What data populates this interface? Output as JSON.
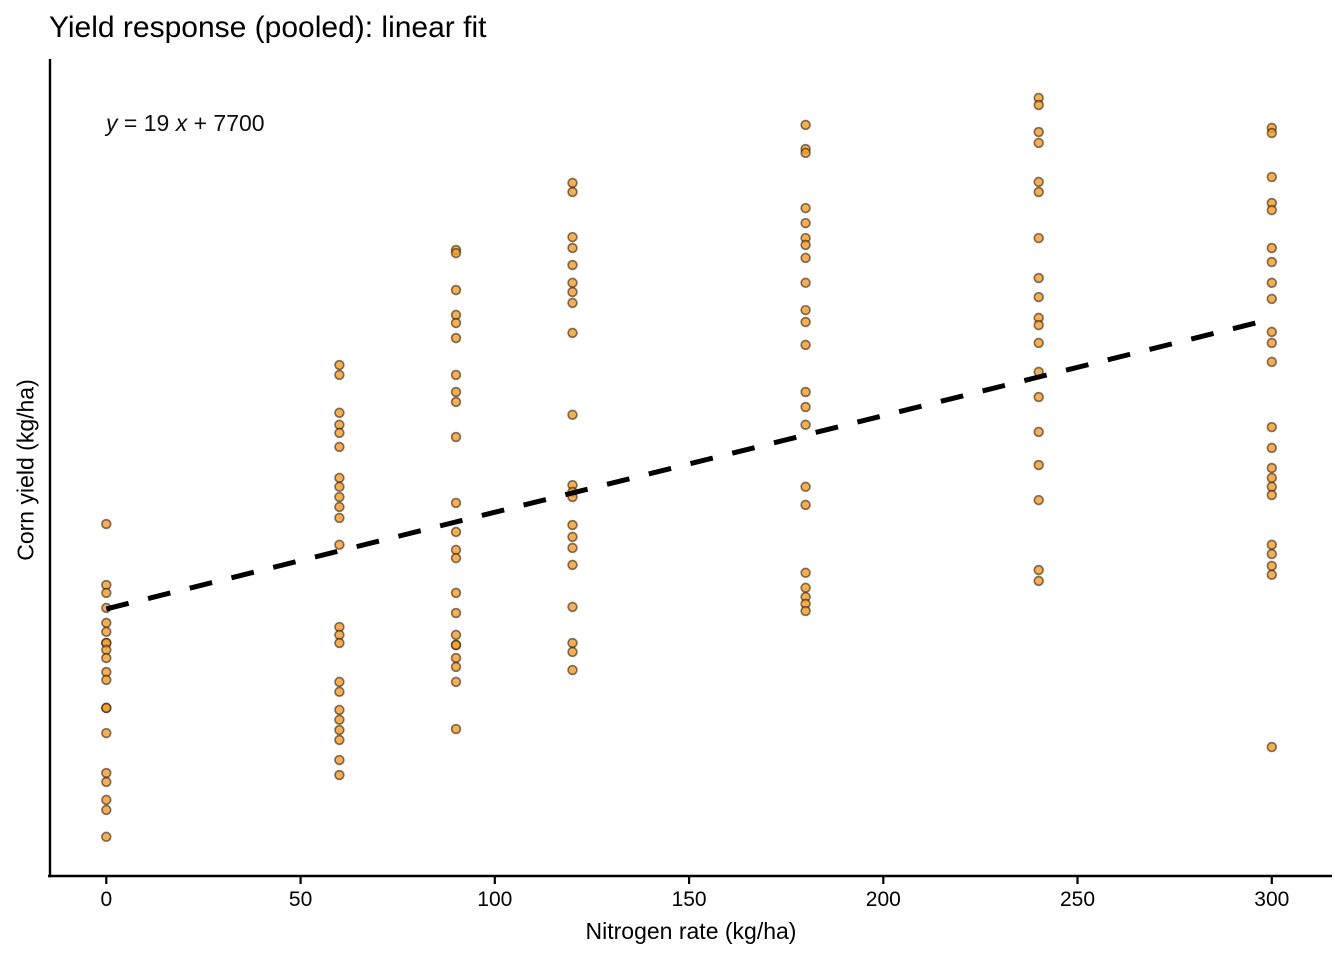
{
  "chart_data": {
    "type": "scatter",
    "title": "Yield response (pooled): linear fit",
    "xlabel": "Nitrogen rate (kg/ha)",
    "ylabel": "Corn yield (kg/ha)",
    "x_ticks": [
      0,
      50,
      100,
      150,
      200,
      250,
      300
    ],
    "y_ticks": [],
    "xlim": [
      -14.5,
      315.5
    ],
    "ylim": [
      2450,
      18510
    ],
    "grid": false,
    "legend": false,
    "annotation": {
      "full": "y = 19 x + 7700",
      "lhs": "y",
      "mid": " = 19 ",
      "x_var": "x",
      "rest": " + 7700"
    },
    "fit_line": {
      "slope": 19,
      "intercept": 7700,
      "x_start": 0,
      "x_end": 300,
      "style": "dashed",
      "color": "#000000"
    },
    "point_style": {
      "fill": "#f89d2a",
      "fill_opacity": 0.82,
      "stroke": "#1c1208",
      "stroke_opacity": 0.55,
      "radius": 4.4,
      "stroke_width": 1.7
    },
    "axis_color": "#000000",
    "series": [
      {
        "x": 0,
        "yields": [
          9370,
          8170,
          8015,
          7720,
          7425,
          7250,
          7030,
          7030,
          6895,
          6735,
          6460,
          6305,
          5755,
          5755,
          5260,
          4475,
          4300,
          3945,
          3750,
          3220
        ]
      },
      {
        "x": 60,
        "yields": [
          12495,
          12300,
          11555,
          11320,
          11160,
          10885,
          10275,
          10100,
          9900,
          9705,
          9490,
          8960,
          7345,
          7190,
          7030,
          6265,
          6070,
          5715,
          5520,
          5320,
          5125,
          4730,
          4435
        ]
      },
      {
        "x": 90,
        "yields": [
          14755,
          14695,
          13970,
          13480,
          13320,
          13025,
          12300,
          11965,
          11770,
          11080,
          9785,
          9215,
          8860,
          8700,
          8015,
          7620,
          7190,
          6990,
          6990,
          6735,
          6560,
          6265,
          5340
        ]
      },
      {
        "x": 120,
        "yields": [
          16075,
          15895,
          15010,
          14795,
          14460,
          14110,
          13930,
          13715,
          13125,
          11515,
          10135,
          10000,
          9900,
          9350,
          9115,
          8900,
          8565,
          7740,
          7030,
          6855,
          6500
        ]
      },
      {
        "x": 180,
        "yields": [
          17215,
          16740,
          16665,
          15580,
          15285,
          14990,
          14855,
          14600,
          14110,
          13575,
          13340,
          12890,
          11965,
          11670,
          11320,
          10100,
          9745,
          8410,
          8115,
          7935,
          7800,
          7660
        ]
      },
      {
        "x": 240,
        "yields": [
          17745,
          17605,
          17075,
          16860,
          16095,
          15895,
          14990,
          14205,
          13830,
          13420,
          13280,
          12930,
          12360,
          11865,
          11180,
          10530,
          9840,
          8465,
          8250
        ]
      },
      {
        "x": 300,
        "yields": [
          17155,
          17055,
          16190,
          15680,
          15540,
          14795,
          14520,
          14110,
          13795,
          13145,
          12930,
          12555,
          11275,
          10865,
          10470,
          10275,
          10100,
          9940,
          8960,
          8780,
          8545,
          8370,
          4985
        ]
      }
    ]
  }
}
